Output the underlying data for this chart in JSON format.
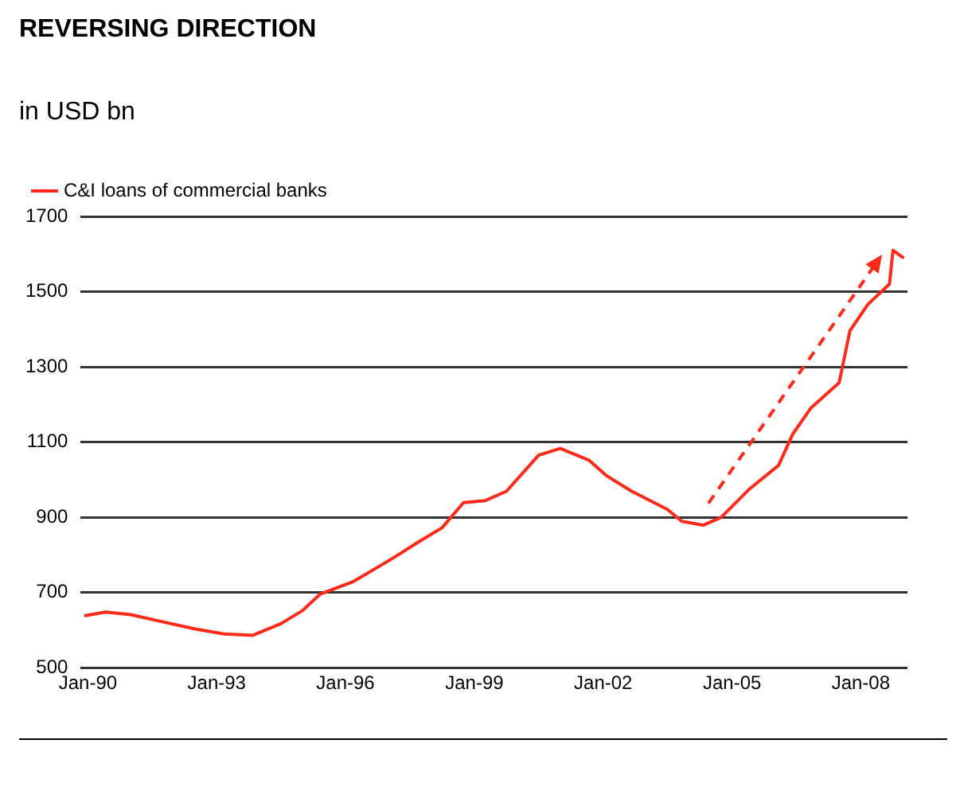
{
  "chart_data": {
    "type": "line",
    "title": "REVERSING DIRECTION",
    "subtitle": "in USD bn",
    "xlim": [
      "1989-11",
      "2009-02"
    ],
    "xticks": [
      {
        "value": "1990-01",
        "label": "Jan-90"
      },
      {
        "value": "1993-01",
        "label": "Jan-93"
      },
      {
        "value": "1996-01",
        "label": "Jan-96"
      },
      {
        "value": "1999-01",
        "label": "Jan-99"
      },
      {
        "value": "2002-01",
        "label": "Jan-02"
      },
      {
        "value": "2005-01",
        "label": "Jan-05"
      },
      {
        "value": "2008-01",
        "label": "Jan-08"
      }
    ],
    "ylim": [
      500,
      1700
    ],
    "yticks": [
      500,
      700,
      900,
      1100,
      1300,
      1500,
      1700
    ],
    "grid": "y",
    "legend": "top left",
    "series": [
      {
        "name": "C&I loans of commercial banks",
        "color": "#ff2a1a",
        "line_style": "solid",
        "x": [
          "1989-12",
          "1990-06",
          "1991-01",
          "1991-09",
          "1992-07",
          "1993-03",
          "1993-11",
          "1994-07",
          "1995-01",
          "1995-06",
          "1996-03",
          "1997-02",
          "1997-10",
          "1998-04",
          "1998-10",
          "1999-04",
          "1999-10",
          "2000-07",
          "2001-01",
          "2001-09",
          "2002-02",
          "2002-09",
          "2003-07",
          "2003-11",
          "2004-05",
          "2004-10",
          "2005-06",
          "2006-02",
          "2006-06",
          "2006-11",
          "2007-07",
          "2007-10",
          "2008-03",
          "2008-09",
          "2008-10",
          "2009-01"
        ],
        "values": [
          638,
          648,
          641,
          624,
          603,
          590,
          586,
          617,
          652,
          696,
          728,
          790,
          838,
          872,
          939,
          944,
          969,
          1065,
          1083,
          1052,
          1010,
          969,
          921,
          889,
          879,
          900,
          976,
          1038,
          1121,
          1190,
          1258,
          1396,
          1466,
          1520,
          1610,
          1589
        ]
      }
    ]
  }
}
